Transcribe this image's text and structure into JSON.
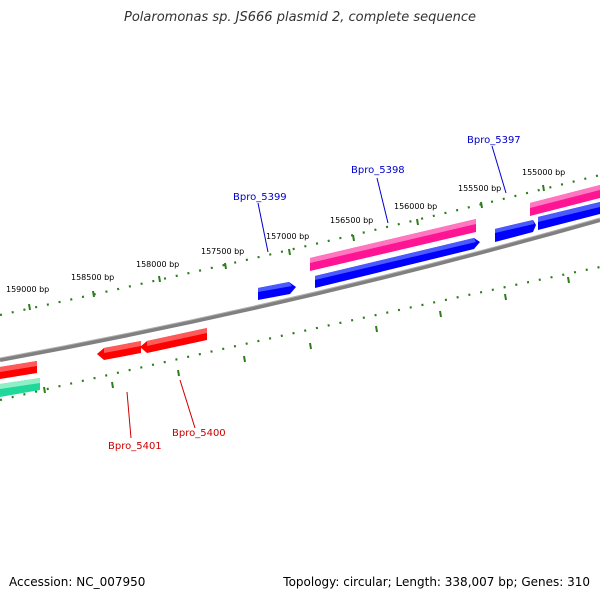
{
  "title": "Polaromonas sp. JS666 plasmid 2, complete sequence",
  "footer": {
    "accession": "Accession: NC_007950",
    "summary": "Topology: circular; Length: 338,007 bp; Genes: 310"
  },
  "colors": {
    "backbone": "#808080",
    "tick": "#2e7d1e",
    "forward_gene": "#ff1493",
    "reverse_gene": "#0000ff",
    "gene_red": "#ff0000",
    "gene_green": "#1fd89a",
    "label_blue": "#0000cc",
    "label_red": "#cc0000"
  },
  "ticks": [
    {
      "label": "159000 bp"
    },
    {
      "label": "158500 bp"
    },
    {
      "label": "158000 bp"
    },
    {
      "label": "157500 bp"
    },
    {
      "label": "157000 bp"
    },
    {
      "label": "156500 bp"
    },
    {
      "label": "156000 bp"
    },
    {
      "label": "155500 bp"
    },
    {
      "label": "155000 bp"
    }
  ],
  "genes": [
    {
      "name": "Bpro_5397",
      "strand": "+"
    },
    {
      "name": "Bpro_5398",
      "strand": "-"
    },
    {
      "name": "Bpro_5399",
      "strand": "-"
    },
    {
      "name": "Bpro_5400",
      "strand": "-"
    },
    {
      "name": "Bpro_5401",
      "strand": "-"
    }
  ]
}
